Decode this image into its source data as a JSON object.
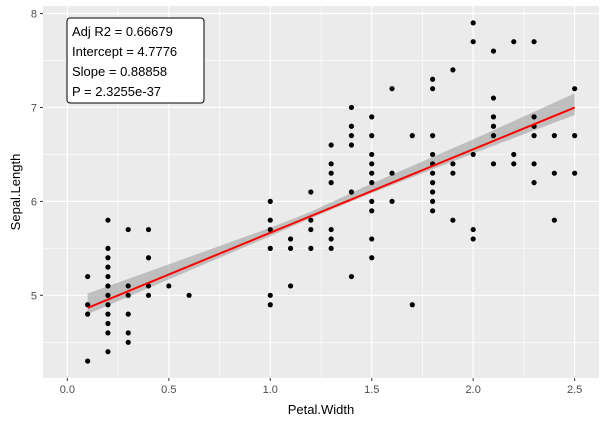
{
  "chart_data": {
    "type": "scatter",
    "title": "",
    "xlabel": "Petal.Width",
    "ylabel": "Sepal.Length",
    "xlim": [
      -0.12,
      2.62
    ],
    "ylim": [
      4.12,
      8.08
    ],
    "x_ticks": [
      0.0,
      0.5,
      1.0,
      1.5,
      2.0,
      2.5
    ],
    "x_tick_labels": [
      "0.0",
      "0.5",
      "1.0",
      "1.5",
      "2.0",
      "2.5"
    ],
    "y_ticks": [
      5,
      6,
      7,
      8
    ],
    "y_tick_labels": [
      "5",
      "6",
      "7",
      "8"
    ],
    "grid": true,
    "colors": {
      "panel": "#ebebeb",
      "grid": "#ffffff",
      "points": "#000000",
      "fit_line": "#ff0000",
      "confidence_band": "#999999"
    },
    "points": [
      [
        0.1,
        4.3
      ],
      [
        0.1,
        4.8
      ],
      [
        0.1,
        4.9
      ],
      [
        0.1,
        5.2
      ],
      [
        0.2,
        4.4
      ],
      [
        0.2,
        4.6
      ],
      [
        0.2,
        4.7
      ],
      [
        0.2,
        4.8
      ],
      [
        0.2,
        4.9
      ],
      [
        0.2,
        5.0
      ],
      [
        0.2,
        5.1
      ],
      [
        0.2,
        5.2
      ],
      [
        0.2,
        5.3
      ],
      [
        0.2,
        5.4
      ],
      [
        0.2,
        5.5
      ],
      [
        0.2,
        5.8
      ],
      [
        0.3,
        4.5
      ],
      [
        0.3,
        4.6
      ],
      [
        0.3,
        4.8
      ],
      [
        0.3,
        5.0
      ],
      [
        0.3,
        5.1
      ],
      [
        0.3,
        5.7
      ],
      [
        0.4,
        5.0
      ],
      [
        0.4,
        5.1
      ],
      [
        0.4,
        5.4
      ],
      [
        0.4,
        5.7
      ],
      [
        0.5,
        5.1
      ],
      [
        0.6,
        5.0
      ],
      [
        1.0,
        4.9
      ],
      [
        1.0,
        5.0
      ],
      [
        1.0,
        5.5
      ],
      [
        1.0,
        5.7
      ],
      [
        1.0,
        5.8
      ],
      [
        1.0,
        6.0
      ],
      [
        1.1,
        5.1
      ],
      [
        1.1,
        5.5
      ],
      [
        1.1,
        5.6
      ],
      [
        1.2,
        5.5
      ],
      [
        1.2,
        5.7
      ],
      [
        1.2,
        5.8
      ],
      [
        1.2,
        6.1
      ],
      [
        1.3,
        5.5
      ],
      [
        1.3,
        5.6
      ],
      [
        1.3,
        5.7
      ],
      [
        1.3,
        6.2
      ],
      [
        1.3,
        6.3
      ],
      [
        1.3,
        6.4
      ],
      [
        1.3,
        6.6
      ],
      [
        1.4,
        5.2
      ],
      [
        1.4,
        6.1
      ],
      [
        1.4,
        6.6
      ],
      [
        1.4,
        6.7
      ],
      [
        1.4,
        6.8
      ],
      [
        1.4,
        7.0
      ],
      [
        1.5,
        5.4
      ],
      [
        1.5,
        5.6
      ],
      [
        1.5,
        5.9
      ],
      [
        1.5,
        6.0
      ],
      [
        1.5,
        6.2
      ],
      [
        1.5,
        6.3
      ],
      [
        1.5,
        6.4
      ],
      [
        1.5,
        6.5
      ],
      [
        1.5,
        6.7
      ],
      [
        1.5,
        6.9
      ],
      [
        1.6,
        6.0
      ],
      [
        1.6,
        6.3
      ],
      [
        1.6,
        7.2
      ],
      [
        1.7,
        4.9
      ],
      [
        1.7,
        6.7
      ],
      [
        1.8,
        5.9
      ],
      [
        1.8,
        6.0
      ],
      [
        1.8,
        6.1
      ],
      [
        1.8,
        6.2
      ],
      [
        1.8,
        6.3
      ],
      [
        1.8,
        6.4
      ],
      [
        1.8,
        6.5
      ],
      [
        1.8,
        6.7
      ],
      [
        1.8,
        7.2
      ],
      [
        1.8,
        7.3
      ],
      [
        1.9,
        5.8
      ],
      [
        1.9,
        6.3
      ],
      [
        1.9,
        6.4
      ],
      [
        1.9,
        7.4
      ],
      [
        2.0,
        5.6
      ],
      [
        2.0,
        5.7
      ],
      [
        2.0,
        6.5
      ],
      [
        2.0,
        7.7
      ],
      [
        2.0,
        7.9
      ],
      [
        2.1,
        6.4
      ],
      [
        2.1,
        6.7
      ],
      [
        2.1,
        6.8
      ],
      [
        2.1,
        6.9
      ],
      [
        2.1,
        7.1
      ],
      [
        2.1,
        7.6
      ],
      [
        2.2,
        6.4
      ],
      [
        2.2,
        6.5
      ],
      [
        2.2,
        7.7
      ],
      [
        2.3,
        6.2
      ],
      [
        2.3,
        6.4
      ],
      [
        2.3,
        6.7
      ],
      [
        2.3,
        6.8
      ],
      [
        2.3,
        6.9
      ],
      [
        2.3,
        7.7
      ],
      [
        2.4,
        5.8
      ],
      [
        2.4,
        6.3
      ],
      [
        2.4,
        6.7
      ],
      [
        2.5,
        6.3
      ],
      [
        2.5,
        6.7
      ],
      [
        2.5,
        7.2
      ]
    ],
    "fit": {
      "intercept": 4.7776,
      "slope": 0.88858
    },
    "confidence_band": {
      "x": [
        0.1,
        0.5,
        1.0,
        1.2,
        1.5,
        2.0,
        2.5
      ],
      "lower": [
        4.8,
        5.17,
        5.63,
        5.82,
        6.09,
        6.51,
        6.92
      ],
      "upper": [
        5.02,
        5.33,
        5.72,
        5.89,
        6.19,
        6.66,
        7.15
      ]
    },
    "annotation": {
      "lines": [
        "Adj R2 =  0.66679",
        "Intercept = 4.7776",
        "Slope = 0.88858",
        "P = 2.3255e-37"
      ]
    }
  }
}
